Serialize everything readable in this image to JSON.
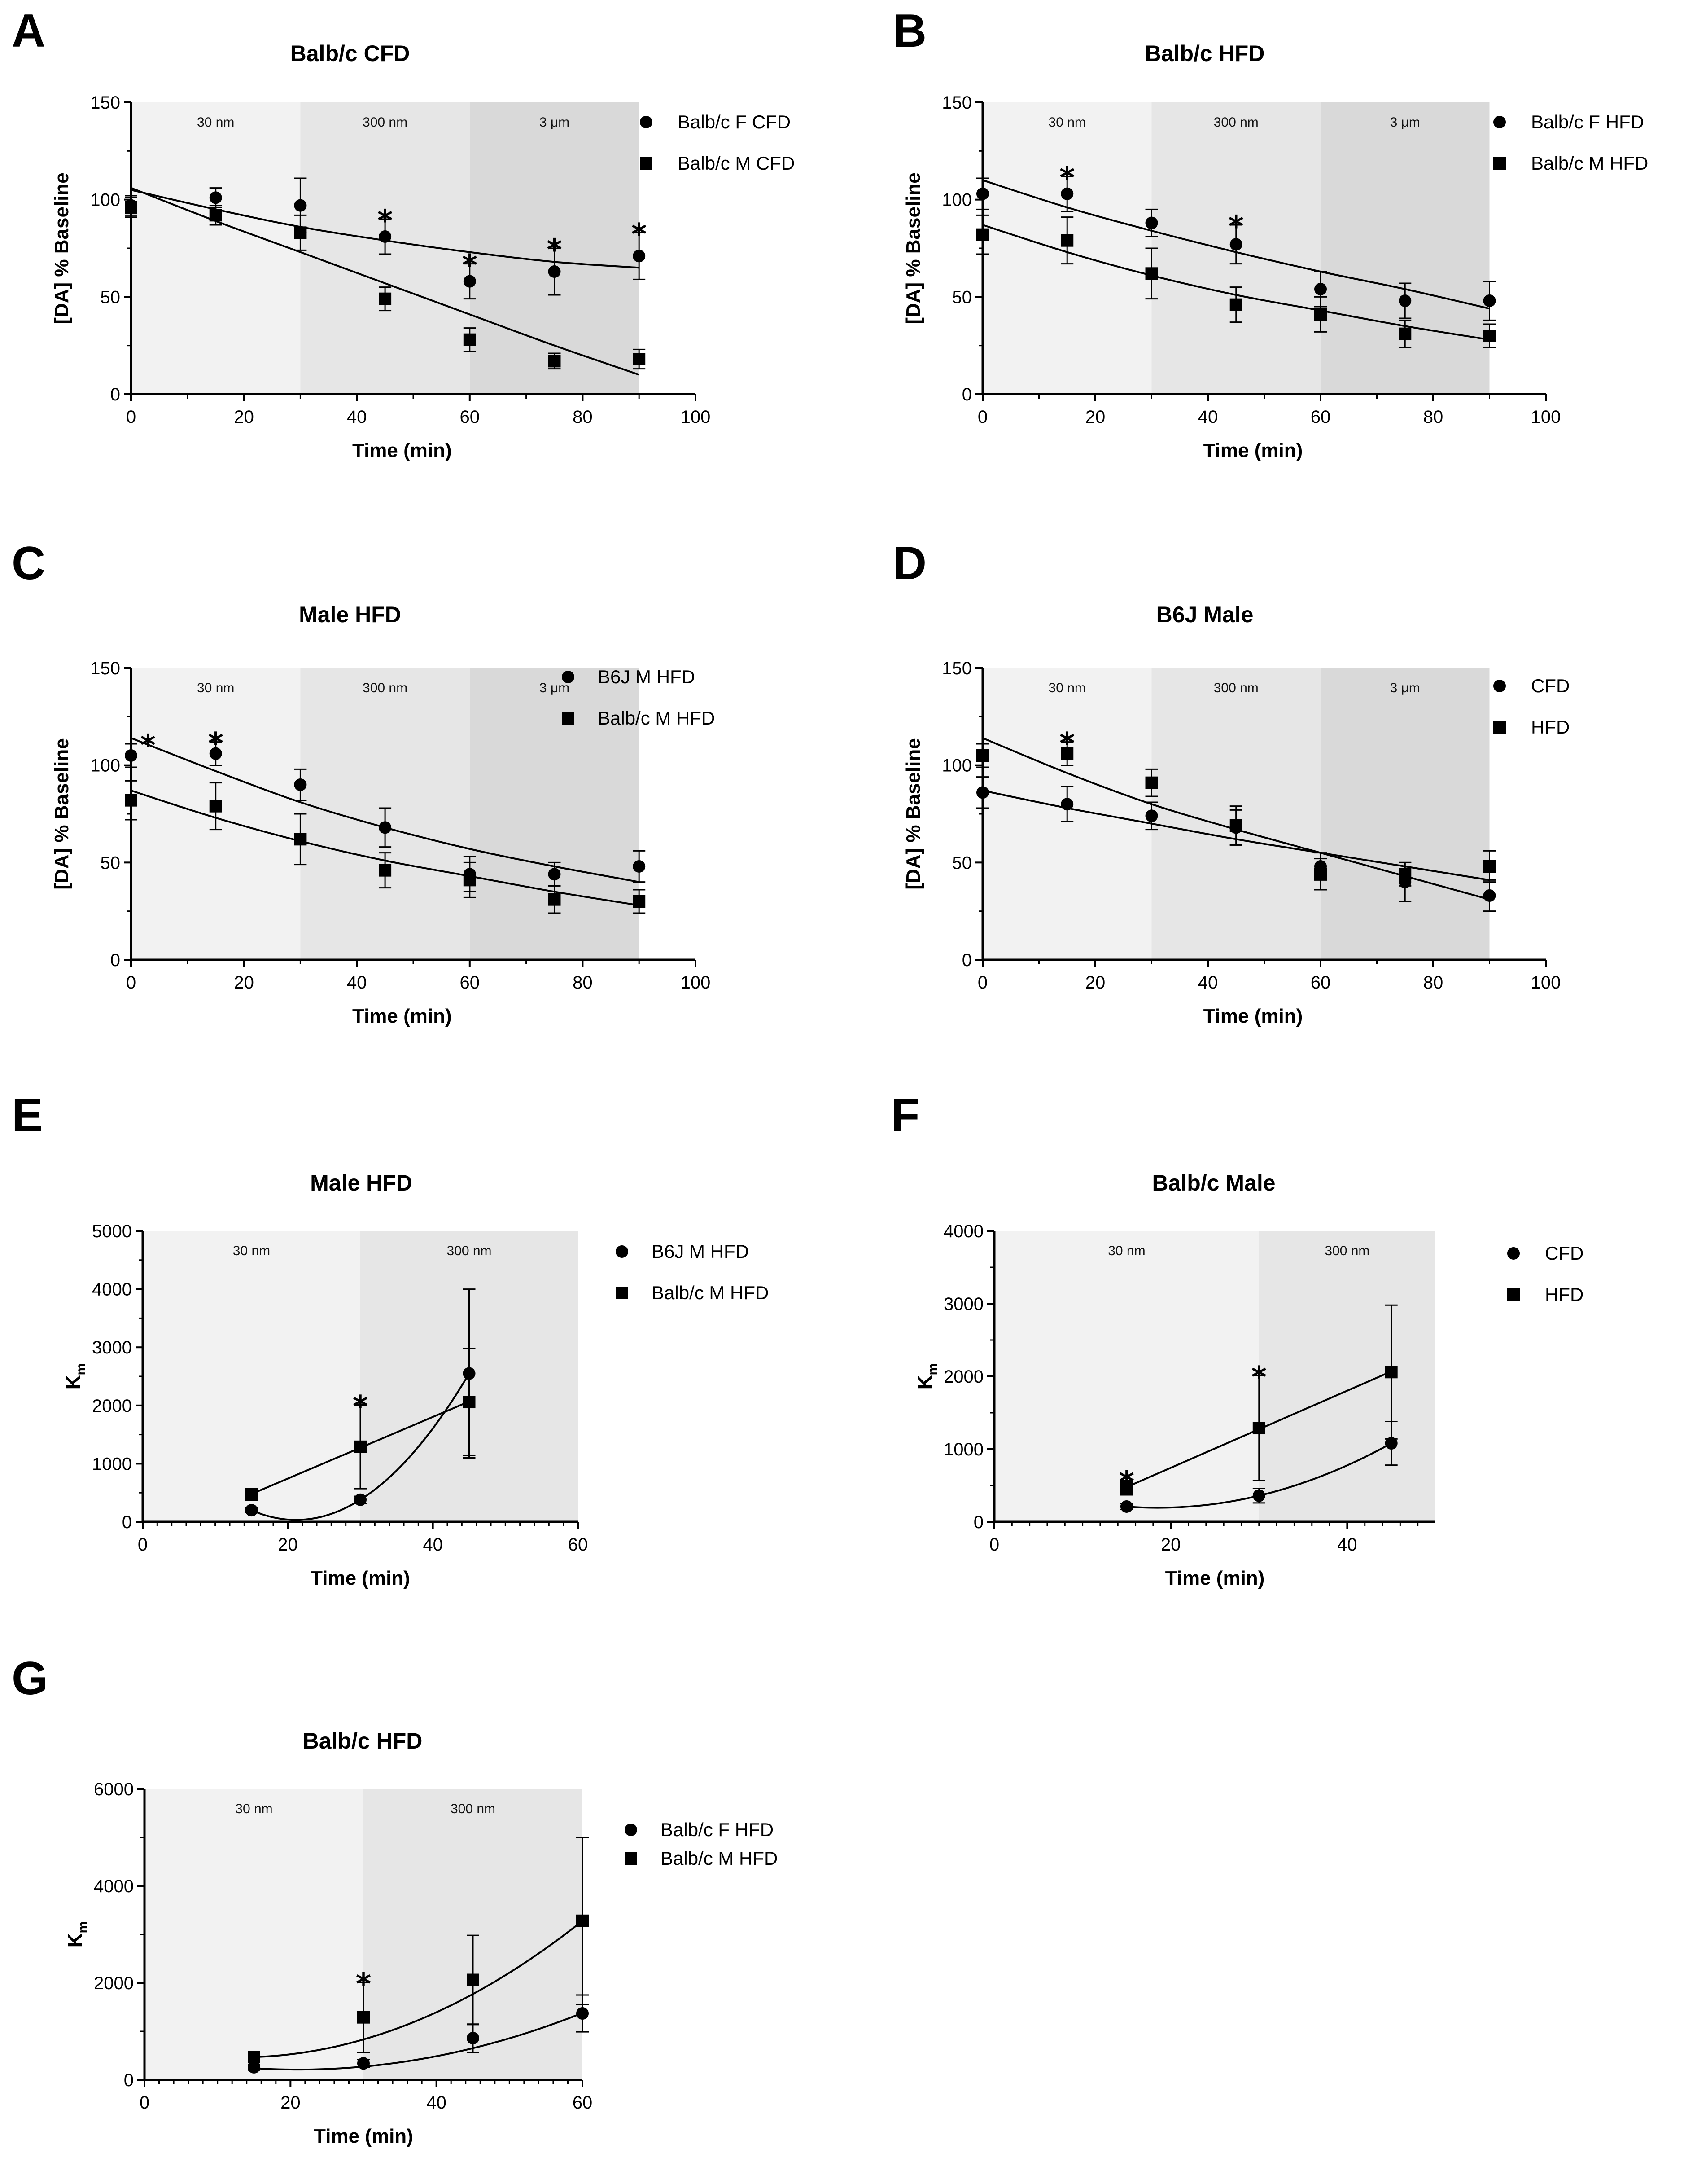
{
  "chart_data": [
    {
      "id": "A",
      "type": "scatter",
      "title": "Balb/c CFD",
      "xlabel": "Time (min)",
      "ylabel": "[DA] % Baseline",
      "xlim": [
        0,
        100
      ],
      "ylim": [
        0,
        150
      ],
      "xticks": [
        0,
        20,
        40,
        60,
        80,
        100
      ],
      "yticks": [
        0,
        50,
        100,
        150
      ],
      "regions": [
        {
          "from": 0,
          "to": 30,
          "label": "30 nm",
          "color": "#f2f2f2"
        },
        {
          "from": 30,
          "to": 60,
          "label": "300 nm",
          "color": "#e6e6e6"
        },
        {
          "from": 60,
          "to": 90,
          "label": "3 μm",
          "color": "#d9d9d9"
        }
      ],
      "series": [
        {
          "name": "Balb/c F CFD",
          "marker": "circle",
          "x": [
            0,
            15,
            30,
            45,
            60,
            75,
            90
          ],
          "y": [
            97,
            101,
            97,
            81,
            58,
            63,
            71
          ],
          "err": [
            5,
            5,
            14,
            9,
            9,
            12,
            12
          ],
          "fit": [
            105,
            95,
            86,
            79,
            73,
            68,
            65
          ]
        },
        {
          "name": "Balb/c M CFD",
          "marker": "square",
          "x": [
            0,
            15,
            30,
            45,
            60,
            75,
            90
          ],
          "y": [
            96,
            92,
            83,
            49,
            28,
            17,
            18
          ],
          "err": [
            5,
            5,
            9,
            6,
            6,
            4,
            5
          ],
          "fit": [
            106,
            89,
            73,
            57,
            41,
            25,
            10
          ]
        }
      ],
      "stars": [
        45,
        60,
        75,
        90
      ]
    },
    {
      "id": "B",
      "type": "scatter",
      "title": "Balb/c HFD",
      "xlabel": "Time (min)",
      "ylabel": "[DA] % Baseline",
      "xlim": [
        0,
        100
      ],
      "ylim": [
        0,
        150
      ],
      "xticks": [
        0,
        20,
        40,
        60,
        80,
        100
      ],
      "yticks": [
        0,
        50,
        100,
        150
      ],
      "regions": [
        {
          "from": 0,
          "to": 30,
          "label": "30 nm",
          "color": "#f2f2f2"
        },
        {
          "from": 30,
          "to": 60,
          "label": "300 nm",
          "color": "#e6e6e6"
        },
        {
          "from": 60,
          "to": 90,
          "label": "3 μm",
          "color": "#d9d9d9"
        }
      ],
      "series": [
        {
          "name": "Balb/c F HFD",
          "marker": "circle",
          "x": [
            0,
            15,
            30,
            45,
            60,
            75,
            90
          ],
          "y": [
            103,
            103,
            88,
            77,
            54,
            48,
            48
          ],
          "err": [
            8,
            9,
            7,
            10,
            9,
            9,
            10
          ],
          "fit": [
            110,
            96,
            84,
            73,
            63,
            54,
            44
          ]
        },
        {
          "name": "Balb/c M HFD",
          "marker": "square",
          "x": [
            0,
            15,
            30,
            45,
            60,
            75,
            90
          ],
          "y": [
            82,
            79,
            62,
            46,
            41,
            31,
            30
          ],
          "err": [
            10,
            12,
            13,
            9,
            9,
            7,
            6
          ],
          "fit": [
            87,
            73,
            61,
            51,
            43,
            35,
            28
          ]
        }
      ],
      "stars": [
        15,
        45
      ]
    },
    {
      "id": "C",
      "type": "scatter",
      "title": "Male HFD",
      "xlabel": "Time (min)",
      "ylabel": "[DA] % Baseline",
      "xlim": [
        0,
        100
      ],
      "ylim": [
        0,
        150
      ],
      "xticks": [
        0,
        20,
        40,
        60,
        80,
        100
      ],
      "yticks": [
        0,
        50,
        100,
        150
      ],
      "regions": [
        {
          "from": 0,
          "to": 30,
          "label": "30 nm",
          "color": "#f2f2f2"
        },
        {
          "from": 30,
          "to": 60,
          "label": "300 nm",
          "color": "#e6e6e6"
        },
        {
          "from": 60,
          "to": 90,
          "label": "3 μm",
          "color": "#d9d9d9"
        }
      ],
      "series": [
        {
          "name": "B6J M HFD",
          "marker": "circle",
          "x": [
            0,
            15,
            30,
            45,
            60,
            75,
            90
          ],
          "y": [
            105,
            106,
            90,
            68,
            44,
            44,
            48
          ],
          "err": [
            6,
            6,
            8,
            10,
            9,
            6,
            8
          ],
          "fit": [
            114,
            97,
            81,
            68,
            57,
            48,
            40
          ]
        },
        {
          "name": "Balb/c M HFD",
          "marker": "square",
          "x": [
            0,
            15,
            30,
            45,
            60,
            75,
            90
          ],
          "y": [
            82,
            79,
            62,
            46,
            41,
            31,
            30
          ],
          "err": [
            10,
            12,
            13,
            9,
            9,
            7,
            6
          ],
          "fit": [
            87,
            73,
            61,
            51,
            43,
            35,
            28
          ]
        }
      ],
      "stars": [
        3,
        15
      ]
    },
    {
      "id": "D",
      "type": "scatter",
      "title": "B6J Male",
      "xlabel": "Time (min)",
      "ylabel": "[DA] % Baseline",
      "xlim": [
        0,
        100
      ],
      "ylim": [
        0,
        150
      ],
      "xticks": [
        0,
        20,
        40,
        60,
        80,
        100
      ],
      "yticks": [
        0,
        50,
        100,
        150
      ],
      "regions": [
        {
          "from": 0,
          "to": 30,
          "label": "30 nm",
          "color": "#f2f2f2"
        },
        {
          "from": 30,
          "to": 60,
          "label": "300 nm",
          "color": "#e6e6e6"
        },
        {
          "from": 60,
          "to": 90,
          "label": "3 μm",
          "color": "#d9d9d9"
        }
      ],
      "series": [
        {
          "name": "CFD",
          "marker": "circle",
          "x": [
            0,
            15,
            30,
            45,
            60,
            75,
            90
          ],
          "y": [
            86,
            80,
            74,
            68,
            48,
            40,
            33
          ],
          "err": [
            8,
            9,
            7,
            9,
            7,
            10,
            8
          ],
          "fit": [
            87,
            78,
            70,
            62,
            55,
            48,
            41
          ]
        },
        {
          "name": "HFD",
          "marker": "square",
          "x": [
            0,
            15,
            30,
            45,
            60,
            75,
            90
          ],
          "y": [
            105,
            106,
            91,
            69,
            44,
            44,
            48
          ],
          "err": [
            6,
            6,
            7,
            10,
            8,
            6,
            8
          ],
          "fit": [
            114,
            96,
            80,
            67,
            55,
            43,
            31
          ]
        }
      ],
      "stars": [
        15
      ]
    },
    {
      "id": "E",
      "type": "scatter",
      "title": "Male HFD",
      "xlabel": "Time (min)",
      "ylabel": "K",
      "ylabel_sub": "m",
      "xlim": [
        0,
        60
      ],
      "ylim": [
        0,
        5000
      ],
      "xticks": [
        0,
        20,
        40,
        60
      ],
      "yticks": [
        0,
        1000,
        2000,
        3000,
        4000,
        5000
      ],
      "regions": [
        {
          "from": 0,
          "to": 30,
          "label": "30 nm",
          "color": "#f2f2f2"
        },
        {
          "from": 30,
          "to": 60,
          "label": "300 nm",
          "color": "#e6e6e6"
        }
      ],
      "series": [
        {
          "name": "B6J M HFD",
          "marker": "circle",
          "x": [
            15,
            30,
            45
          ],
          "y": [
            200,
            380,
            2550
          ],
          "err": [
            40,
            60,
            1450
          ],
          "fit_quad": [
            200,
            380,
            2550
          ],
          "fit_range": [
            15,
            45
          ]
        },
        {
          "name": "Balb/c M HFD",
          "marker": "square",
          "x": [
            15,
            30,
            45
          ],
          "y": [
            470,
            1290,
            2060
          ],
          "err": [
            100,
            720,
            920
          ],
          "fit_linear": true
        }
      ],
      "stars": [
        30
      ]
    },
    {
      "id": "F",
      "type": "scatter",
      "title": "Balb/c Male",
      "xlabel": "Time (min)",
      "ylabel": "K",
      "ylabel_sub": "m",
      "xlim": [
        0,
        50
      ],
      "ylim": [
        0,
        4000
      ],
      "xticks": [
        0,
        20,
        40
      ],
      "yticks": [
        0,
        1000,
        2000,
        3000,
        4000
      ],
      "regions": [
        {
          "from": 0,
          "to": 30,
          "label": "30 nm",
          "color": "#f2f2f2"
        },
        {
          "from": 30,
          "to": 50,
          "label": "300 nm",
          "color": "#e6e6e6"
        }
      ],
      "series": [
        {
          "name": "CFD",
          "marker": "circle",
          "x": [
            15,
            30,
            45
          ],
          "y": [
            210,
            360,
            1080
          ],
          "err": [
            40,
            100,
            300
          ],
          "fit_quad": [
            210,
            360,
            1080
          ],
          "fit_range": [
            15,
            45
          ]
        },
        {
          "name": "HFD",
          "marker": "square",
          "x": [
            15,
            30,
            45
          ],
          "y": [
            470,
            1290,
            2060
          ],
          "err": [
            100,
            720,
            920
          ],
          "fit_linear": true
        }
      ],
      "stars": [
        15,
        30
      ]
    },
    {
      "id": "G",
      "type": "scatter",
      "title": "Balb/c HFD",
      "xlabel": "Time (min)",
      "ylabel": "K",
      "ylabel_sub": "m",
      "xlim": [
        0,
        60
      ],
      "ylim": [
        0,
        6000
      ],
      "xticks": [
        0,
        20,
        40,
        60
      ],
      "yticks": [
        0,
        2000,
        4000,
        6000
      ],
      "regions": [
        {
          "from": 0,
          "to": 30,
          "label": "30 nm",
          "color": "#f2f2f2"
        },
        {
          "from": 30,
          "to": 60,
          "label": "300 nm",
          "color": "#e6e6e6"
        }
      ],
      "series": [
        {
          "name": "Balb/c F HFD",
          "marker": "circle",
          "x": [
            15,
            30,
            45,
            60
          ],
          "y": [
            260,
            340,
            860,
            1370
          ],
          "err": [
            60,
            80,
            290,
            380
          ],
          "fit_quad": [
            240,
            420,
            1380
          ],
          "fit_range": [
            15,
            60
          ]
        },
        {
          "name": "Balb/c M HFD",
          "marker": "square",
          "x": [
            15,
            30,
            45,
            60
          ],
          "y": [
            470,
            1290,
            2060,
            3280
          ],
          "err": [
            100,
            720,
            920,
            1720
          ],
          "fit_quad": [
            470,
            1230,
            3280
          ],
          "fit_range": [
            15,
            60
          ]
        }
      ],
      "stars": [
        30
      ]
    }
  ]
}
